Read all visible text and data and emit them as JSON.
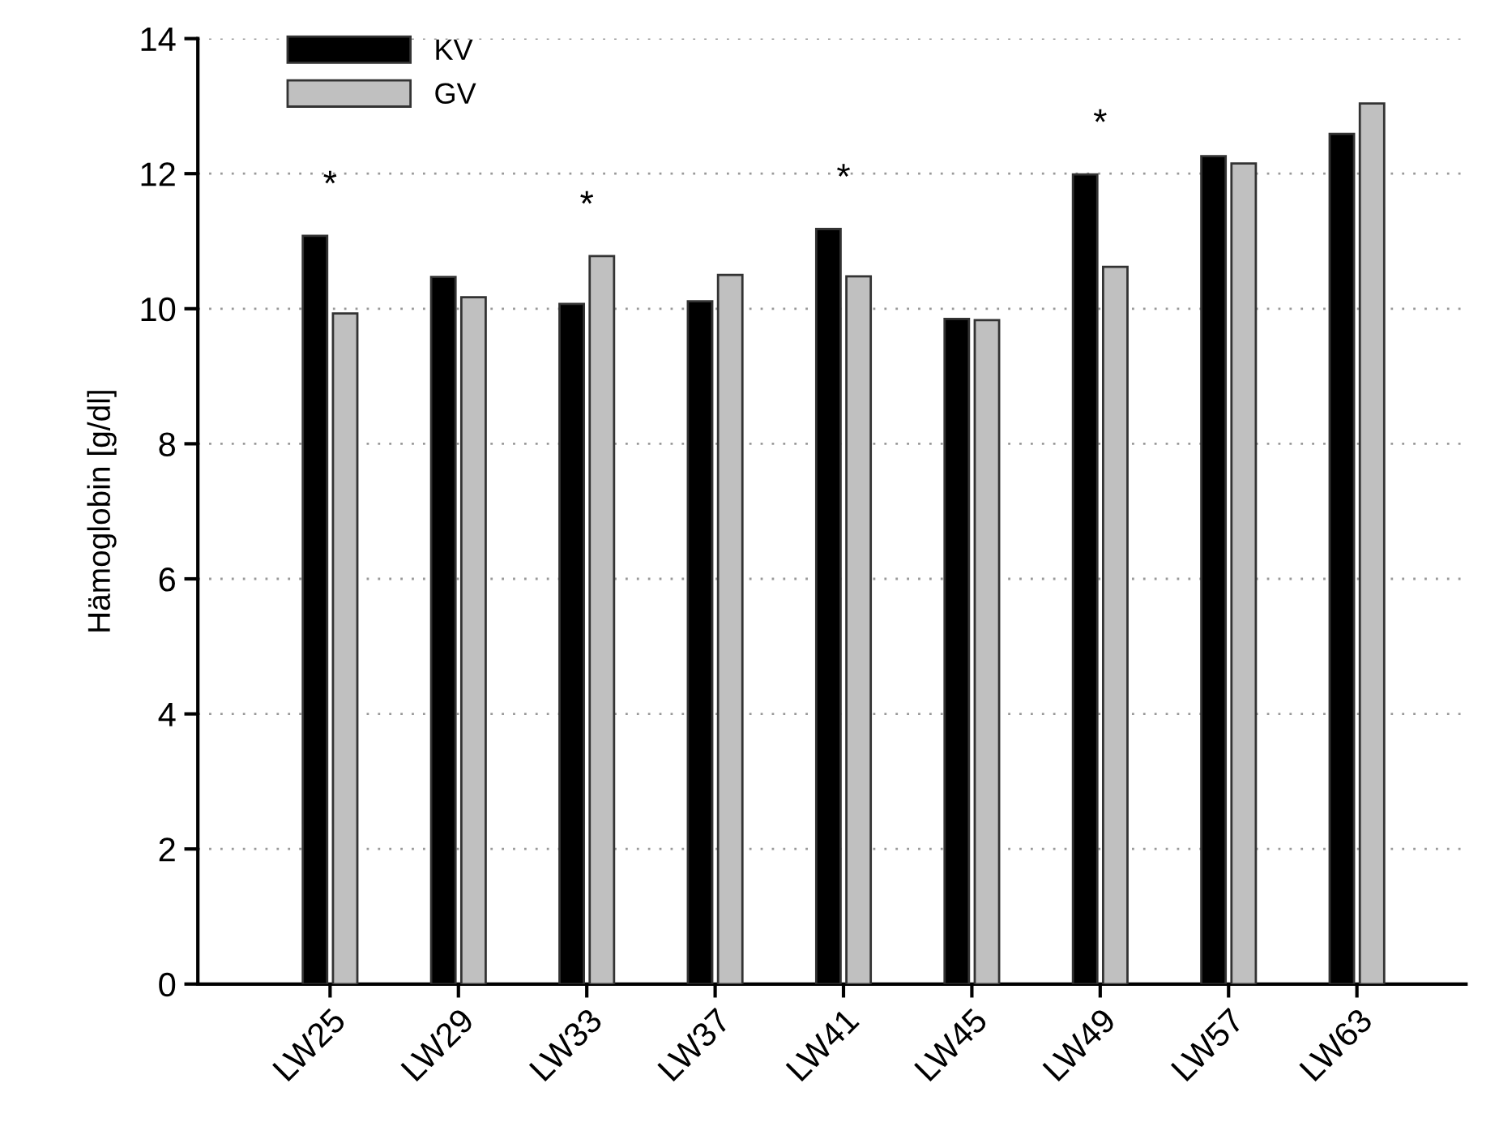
{
  "chart_data": {
    "type": "bar",
    "ylabel": "Hämoglobin [g/dl]",
    "categories": [
      "LW25",
      "LW29",
      "LW33",
      "LW37",
      "LW41",
      "LW45",
      "LW49",
      "LW57",
      "LW63"
    ],
    "series": [
      {
        "name": "KV",
        "color": "#000000",
        "values": [
          11.08,
          10.47,
          10.07,
          10.11,
          11.18,
          9.85,
          11.99,
          12.26,
          12.59
        ]
      },
      {
        "name": "GV",
        "color": "#c0c0c0",
        "values": [
          9.93,
          10.17,
          10.78,
          10.5,
          10.48,
          9.83,
          10.62,
          12.15,
          13.04
        ]
      }
    ],
    "annotations": [
      {
        "text": "*",
        "x": "LW25",
        "y": 11.08
      },
      {
        "text": "*",
        "x": "LW33",
        "y": 10.78
      },
      {
        "text": "*",
        "x": "LW41",
        "y": 11.18
      },
      {
        "text": "*",
        "x": "LW49",
        "y": 11.99
      }
    ],
    "ylim": [
      0,
      14
    ],
    "yticks": [
      0,
      2,
      4,
      6,
      8,
      10,
      12,
      14
    ],
    "grid": "y",
    "legend": "top left"
  }
}
